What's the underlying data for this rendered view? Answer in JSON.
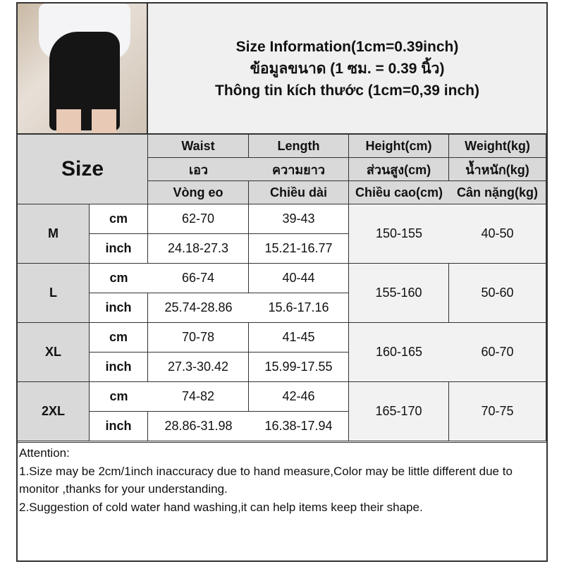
{
  "header": {
    "lines": [
      "Size Information(1cm=0.39inch)",
      "ข้อมูลขนาด (1 ซม. = 0.39 นิ้ว)",
      "Thông tin kích thước (1cm=0,39 inch)"
    ]
  },
  "table": {
    "size_label": "Size",
    "columns": [
      [
        "Waist",
        "เอว",
        "Vòng eo"
      ],
      [
        "Length",
        "ความยาว",
        "Chiều dài"
      ],
      [
        "Height(cm)",
        "ส่วนสูง(cm)",
        "Chiều cao(cm)"
      ],
      [
        "Weight(kg)",
        "น้ำหนัก(kg)",
        "Cân nặng(kg)"
      ]
    ],
    "units": [
      "cm",
      "inch"
    ],
    "rows": [
      {
        "size": "M",
        "waist_cm": "62-70",
        "length_cm": "39-43",
        "waist_in": "24.18-27.3",
        "length_in": "15.21-16.77",
        "height": "150-155",
        "weight": "40-50"
      },
      {
        "size": "L",
        "waist_cm": "66-74",
        "length_cm": "40-44",
        "waist_in": "25.74-28.86",
        "length_in": "15.6-17.16",
        "height": "155-160",
        "weight": "50-60"
      },
      {
        "size": "XL",
        "waist_cm": "70-78",
        "length_cm": "41-45",
        "waist_in": "27.3-30.42",
        "length_in": "15.99-17.55",
        "height": "160-165",
        "weight": "60-70"
      },
      {
        "size": "2XL",
        "waist_cm": "74-82",
        "length_cm": "42-46",
        "waist_in": "28.86-31.98",
        "length_in": "16.38-17.94",
        "height": "165-170",
        "weight": "70-75"
      }
    ]
  },
  "attention": {
    "title": "Attention:",
    "items": [
      "1.Size may be 2cm/1inch inaccuracy due to hand measure,Color may be little different due to monitor ,thanks for your understanding.",
      "2.Suggestion of cold water hand washing,it can help items keep their shape."
    ]
  }
}
